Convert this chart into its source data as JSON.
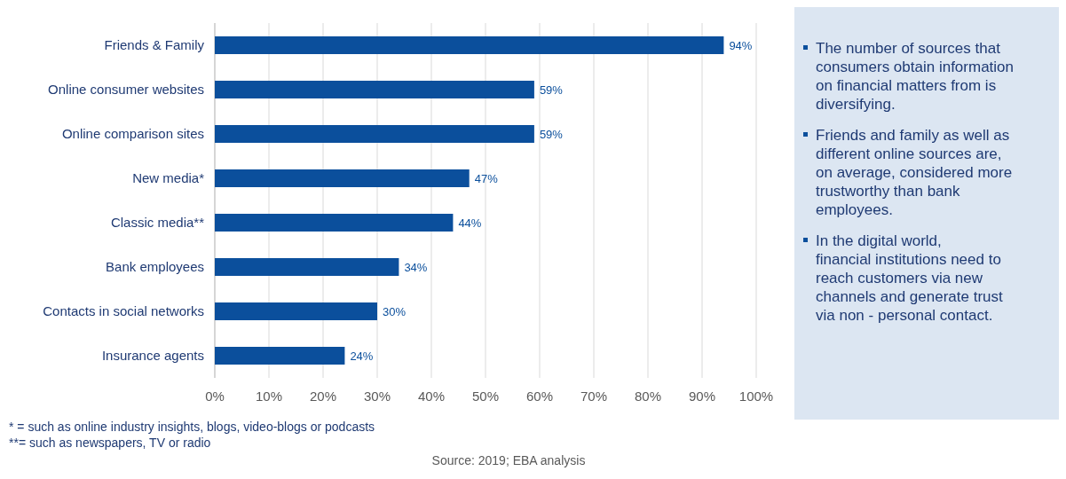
{
  "chart_data": {
    "type": "bar",
    "orientation": "horizontal",
    "categories": [
      "Friends & Family",
      "Online consumer websites",
      "Online comparison sites",
      "New media*",
      "Classic media**",
      "Bank employees",
      "Contacts in social networks",
      "Insurance agents"
    ],
    "values": [
      94,
      59,
      59,
      47,
      44,
      34,
      30,
      24
    ],
    "value_labels": [
      "94%",
      "59%",
      "59%",
      "47%",
      "44%",
      "34%",
      "30%",
      "24%"
    ],
    "color": "#0b4f9c",
    "xlim": [
      0,
      100
    ],
    "xticks": [
      {
        "value": 0,
        "label": "0%"
      },
      {
        "value": 10,
        "label": "10%"
      },
      {
        "value": 20,
        "label": "20%"
      },
      {
        "value": 30,
        "label": "30%"
      },
      {
        "value": 40,
        "label": "40%"
      },
      {
        "value": 50,
        "label": "50%"
      },
      {
        "value": 60,
        "label": "60%"
      },
      {
        "value": 70,
        "label": "70%"
      },
      {
        "value": 80,
        "label": "80%"
      },
      {
        "value": 90,
        "label": "90%"
      },
      {
        "value": 100,
        "label": "100%"
      }
    ],
    "grid": "x",
    "annotations": [
      "The number of sources that consumers obtain information on financial matters from is diversifying.",
      "Friends and family as well as different online sources are, on average, considered more trustworthy than bank employees.",
      "In the digital world, financial institutions need to reach customers via new channels and generate trust via non - personal contact.",
      "*  = such as online industry insights, blogs, video-blogs or podcasts",
      "**= such as newspapers, TV or radio",
      "Source: 2019; EBA analysis"
    ]
  }
}
